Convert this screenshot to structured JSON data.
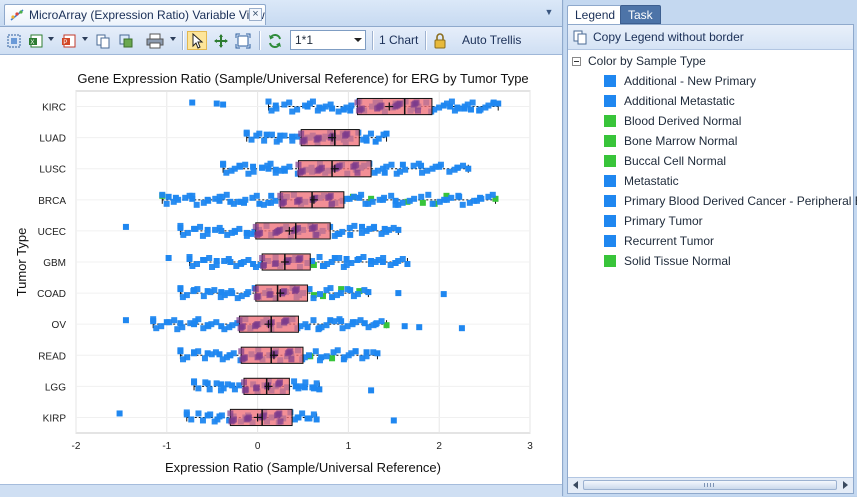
{
  "document_tab": {
    "title": "MicroArray (Expression Ratio) Variable View",
    "close_symbol": "×",
    "icon": "scatter-plot-icon"
  },
  "toolbar": {
    "trellis_value": "1*1",
    "chart_count_label": "1 Chart",
    "auto_trellis_label": "Auto Trellis",
    "icons": [
      "fit-view-icon",
      "excel-export-icon",
      "ppt-export-icon",
      "copy-icon",
      "copy-image-icon",
      "print-icon",
      "pointer-icon",
      "zoom-icon",
      "fit-icon",
      "refresh-icon",
      "lock-icon"
    ]
  },
  "right_panel": {
    "tabs": [
      "Legend",
      "Task"
    ],
    "active_tab": "Legend",
    "copy_legend_label": "Copy Legend  without border",
    "legend_group_label": "Color by Sample Type",
    "legend_items": [
      {
        "label": "Additional - New Primary",
        "color": "#1f87f0"
      },
      {
        "label": "Additional Metastatic",
        "color": "#1f87f0"
      },
      {
        "label": "Blood Derived Normal",
        "color": "#38c43a"
      },
      {
        "label": "Bone Marrow Normal",
        "color": "#38c43a"
      },
      {
        "label": "Buccal Cell Normal",
        "color": "#38c43a"
      },
      {
        "label": "Metastatic",
        "color": "#1f87f0"
      },
      {
        "label": "Primary Blood Derived Cancer - Peripheral Blood",
        "color": "#1f87f0"
      },
      {
        "label": "Primary Tumor",
        "color": "#1f87f0"
      },
      {
        "label": "Recurrent Tumor",
        "color": "#1f87f0"
      },
      {
        "label": "Solid Tissue Normal",
        "color": "#38c43a"
      }
    ]
  },
  "chart_data": {
    "type": "box",
    "title": "Gene Expression  Ratio (Sample/Universal Reference) for ERG by Tumor Type",
    "xlabel": "Expression Ratio (Sample/Universal Reference)",
    "ylabel": "Tumor Type",
    "xlim": [
      -2,
      3
    ],
    "xticks": [
      "-2",
      "-1",
      "0",
      "1",
      "2",
      "3"
    ],
    "grid": true,
    "point_colors": {
      "tumor": "#1f87f0",
      "normal": "#38c43a"
    },
    "box_fill": "#ef6f78",
    "categories": [
      "KIRC",
      "LUAD",
      "LUSC",
      "BRCA",
      "UCEC",
      "GBM",
      "COAD",
      "OV",
      "READ",
      "LGG",
      "KIRP"
    ],
    "boxes": [
      {
        "label": "KIRC",
        "whisker_low": 0.12,
        "q1": 1.1,
        "median": 1.62,
        "q3": 1.92,
        "whisker_high": 2.65,
        "mean": 1.45,
        "points": [
          [
            -0.72,
            "t"
          ],
          [
            -0.45,
            "t"
          ],
          [
            -0.38,
            "t"
          ],
          [
            0.2,
            "t"
          ],
          [
            0.55,
            "t"
          ],
          [
            0.68,
            "t"
          ],
          [
            0.82,
            "t"
          ],
          [
            0.95,
            "t"
          ],
          [
            1.02,
            "t"
          ],
          [
            1.3,
            "t"
          ],
          [
            1.52,
            "t"
          ],
          [
            1.75,
            "t"
          ],
          [
            2.05,
            "t"
          ],
          [
            2.12,
            "t"
          ],
          [
            2.2,
            "t"
          ],
          [
            2.28,
            "t"
          ],
          [
            2.35,
            "t"
          ],
          [
            2.44,
            "t"
          ],
          [
            2.6,
            "t"
          ],
          [
            2.65,
            "t"
          ]
        ]
      },
      {
        "label": "LUAD",
        "whisker_low": -0.12,
        "q1": 0.48,
        "median": 0.85,
        "q3": 1.12,
        "whisker_high": 1.42,
        "mean": 0.82,
        "points": [
          [
            -0.12,
            "t"
          ],
          [
            0.1,
            "t"
          ],
          [
            0.25,
            "t"
          ],
          [
            0.38,
            "t"
          ],
          [
            0.55,
            "t"
          ],
          [
            0.72,
            "t"
          ],
          [
            0.95,
            "t"
          ],
          [
            1.2,
            "t"
          ],
          [
            1.3,
            "t"
          ],
          [
            1.42,
            "t"
          ]
        ]
      },
      {
        "label": "LUSC",
        "whisker_low": -0.38,
        "q1": 0.45,
        "median": 0.82,
        "q3": 1.25,
        "whisker_high": 2.32,
        "mean": 0.85,
        "points": [
          [
            -0.38,
            "t"
          ],
          [
            -0.2,
            "t"
          ],
          [
            -0.05,
            "t"
          ],
          [
            0.05,
            "t"
          ],
          [
            0.12,
            "t"
          ],
          [
            0.2,
            "t"
          ],
          [
            0.3,
            "t"
          ],
          [
            0.6,
            "t"
          ],
          [
            1.4,
            "t"
          ],
          [
            1.6,
            "t"
          ],
          [
            1.8,
            "t"
          ],
          [
            2.0,
            "t"
          ],
          [
            2.2,
            "t"
          ],
          [
            2.32,
            "t"
          ]
        ]
      },
      {
        "label": "BRCA",
        "whisker_low": -1.05,
        "q1": 0.25,
        "median": 0.6,
        "q3": 0.95,
        "whisker_high": 2.62,
        "mean": 0.62,
        "points": [
          [
            -1.05,
            "n"
          ],
          [
            -0.98,
            "t"
          ],
          [
            -0.9,
            "t"
          ],
          [
            -0.72,
            "t"
          ],
          [
            -0.55,
            "t"
          ],
          [
            -0.42,
            "t"
          ],
          [
            -0.3,
            "t"
          ],
          [
            -0.15,
            "t"
          ],
          [
            0.02,
            "t"
          ],
          [
            0.15,
            "t"
          ],
          [
            1.05,
            "n"
          ],
          [
            1.12,
            "t"
          ],
          [
            1.25,
            "n"
          ],
          [
            1.38,
            "t"
          ],
          [
            1.52,
            "t"
          ],
          [
            1.65,
            "n"
          ],
          [
            1.82,
            "n"
          ],
          [
            1.95,
            "n"
          ],
          [
            2.08,
            "n"
          ],
          [
            2.22,
            "t"
          ],
          [
            2.45,
            "t"
          ],
          [
            2.62,
            "n"
          ]
        ]
      },
      {
        "label": "UCEC",
        "whisker_low": -0.85,
        "q1": -0.02,
        "median": 0.42,
        "q3": 0.8,
        "whisker_high": 1.55,
        "mean": 0.35,
        "points": [
          [
            -1.45,
            "t"
          ],
          [
            -0.85,
            "t"
          ],
          [
            -0.7,
            "t"
          ],
          [
            -0.55,
            "t"
          ],
          [
            -0.4,
            "t"
          ],
          [
            -0.25,
            "t"
          ],
          [
            -0.12,
            "t"
          ],
          [
            0.9,
            "t"
          ],
          [
            1.02,
            "t"
          ],
          [
            1.15,
            "t"
          ],
          [
            1.28,
            "t"
          ],
          [
            1.4,
            "t"
          ],
          [
            1.55,
            "t"
          ]
        ]
      },
      {
        "label": "GBM",
        "whisker_low": -0.75,
        "q1": 0.05,
        "median": 0.3,
        "q3": 0.58,
        "whisker_high": 1.65,
        "mean": 0.3,
        "points": [
          [
            -0.98,
            "t"
          ],
          [
            -0.75,
            "t"
          ],
          [
            -0.6,
            "t"
          ],
          [
            -0.45,
            "t"
          ],
          [
            -0.3,
            "t"
          ],
          [
            -0.18,
            "t"
          ],
          [
            -0.05,
            "t"
          ],
          [
            0.62,
            "n"
          ],
          [
            0.72,
            "t"
          ],
          [
            0.85,
            "t"
          ],
          [
            0.98,
            "t"
          ],
          [
            1.1,
            "t"
          ],
          [
            1.25,
            "t"
          ],
          [
            1.38,
            "t"
          ],
          [
            1.52,
            "t"
          ],
          [
            1.65,
            "t"
          ]
        ]
      },
      {
        "label": "COAD",
        "whisker_low": -0.85,
        "q1": -0.02,
        "median": 0.22,
        "q3": 0.55,
        "whisker_high": 1.22,
        "mean": 0.25,
        "points": [
          [
            -0.85,
            "t"
          ],
          [
            -0.7,
            "t"
          ],
          [
            -0.55,
            "t"
          ],
          [
            -0.4,
            "t"
          ],
          [
            -0.28,
            "t"
          ],
          [
            -0.12,
            "t"
          ],
          [
            0.62,
            "n"
          ],
          [
            0.72,
            "n"
          ],
          [
            0.82,
            "t"
          ],
          [
            0.92,
            "n"
          ],
          [
            1.02,
            "t"
          ],
          [
            1.12,
            "n"
          ],
          [
            1.22,
            "t"
          ],
          [
            1.55,
            "t"
          ],
          [
            2.05,
            "t"
          ]
        ]
      },
      {
        "label": "OV",
        "whisker_low": -1.15,
        "q1": -0.2,
        "median": 0.15,
        "q3": 0.45,
        "whisker_high": 1.42,
        "mean": 0.12,
        "points": [
          [
            -1.45,
            "t"
          ],
          [
            -1.15,
            "t"
          ],
          [
            -1.0,
            "t"
          ],
          [
            -0.85,
            "t"
          ],
          [
            -0.7,
            "t"
          ],
          [
            -0.55,
            "t"
          ],
          [
            -0.4,
            "t"
          ],
          [
            0.55,
            "t"
          ],
          [
            0.68,
            "t"
          ],
          [
            0.8,
            "t"
          ],
          [
            0.92,
            "t"
          ],
          [
            1.05,
            "t"
          ],
          [
            1.18,
            "t"
          ],
          [
            1.3,
            "t"
          ],
          [
            1.42,
            "n"
          ],
          [
            1.62,
            "t"
          ],
          [
            1.78,
            "t"
          ],
          [
            2.25,
            "t"
          ]
        ]
      },
      {
        "label": "READ",
        "whisker_low": -0.85,
        "q1": -0.18,
        "median": 0.15,
        "q3": 0.5,
        "whisker_high": 1.32,
        "mean": 0.18,
        "points": [
          [
            -0.85,
            "t"
          ],
          [
            -0.7,
            "t"
          ],
          [
            -0.55,
            "t"
          ],
          [
            -0.42,
            "t"
          ],
          [
            -0.3,
            "t"
          ],
          [
            0.58,
            "n"
          ],
          [
            0.7,
            "t"
          ],
          [
            0.82,
            "n"
          ],
          [
            0.95,
            "t"
          ],
          [
            1.08,
            "t"
          ],
          [
            1.2,
            "t"
          ],
          [
            1.32,
            "t"
          ]
        ]
      },
      {
        "label": "LGG",
        "whisker_low": -0.7,
        "q1": -0.15,
        "median": 0.1,
        "q3": 0.35,
        "whisker_high": 0.68,
        "mean": 0.12,
        "points": [
          [
            -0.7,
            "t"
          ],
          [
            -0.55,
            "t"
          ],
          [
            -0.4,
            "t"
          ],
          [
            -0.28,
            "t"
          ],
          [
            0.42,
            "t"
          ],
          [
            0.52,
            "t"
          ],
          [
            0.62,
            "t"
          ],
          [
            0.68,
            "t"
          ],
          [
            1.25,
            "t"
          ]
        ]
      },
      {
        "label": "KIRP",
        "whisker_low": -0.78,
        "q1": -0.3,
        "median": 0.05,
        "q3": 0.38,
        "whisker_high": 0.65,
        "mean": 0.0,
        "points": [
          [
            -1.52,
            "t"
          ],
          [
            -0.78,
            "t"
          ],
          [
            -0.55,
            "t"
          ],
          [
            -0.42,
            "t"
          ],
          [
            0.45,
            "t"
          ],
          [
            0.55,
            "t"
          ],
          [
            0.65,
            "t"
          ],
          [
            1.5,
            "t"
          ]
        ]
      }
    ]
  }
}
